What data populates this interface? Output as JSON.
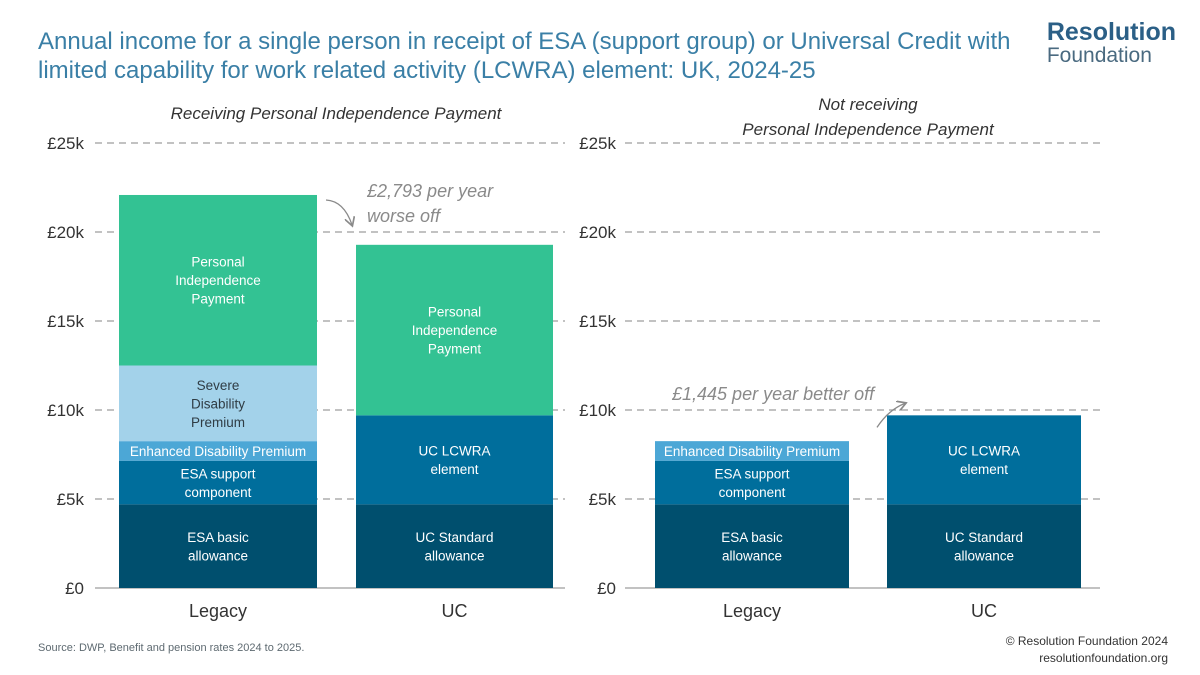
{
  "header": {
    "title": "Annual income for a single person in receipt of ESA (support group) or Universal Credit with limited capability for work related activity (LCWRA) element: UK, 2024-25",
    "logo_line1": "Resolution",
    "logo_line2": "Foundation"
  },
  "footer": {
    "source": "Source: DWP, Benefit and pension rates 2024 to 2025.",
    "copyright": "© Resolution Foundation 2024",
    "website": "resolutionfoundation.org"
  },
  "colors": {
    "esa_basic": "#004f6e",
    "esa_support": "#006e9c",
    "enhanced": "#4ca7d6",
    "severe": "#a3d2ea",
    "pip": "#33c293",
    "uc_standard": "#004f6e",
    "uc_lcwra": "#006e9c",
    "gridline": "#9e9e9e",
    "annotation": "#8a8a8a"
  },
  "chart_data": [
    {
      "type": "bar",
      "stacked": true,
      "title": "Receiving Personal Independence Payment",
      "categories": [
        "Legacy",
        "UC"
      ],
      "ylim": [
        0,
        25000
      ],
      "y_ticks": [
        {
          "value": 0,
          "label": "£0"
        },
        {
          "value": 5000,
          "label": "£5k"
        },
        {
          "value": 10000,
          "label": "£10k"
        },
        {
          "value": 15000,
          "label": "£15k"
        },
        {
          "value": 20000,
          "label": "£20k"
        },
        {
          "value": 25000,
          "label": "£25k"
        }
      ],
      "grid": true,
      "stacks": [
        {
          "category": "Legacy",
          "segments": [
            {
              "label": "ESA basic allowance",
              "value": 4700,
              "color": "esa_basic",
              "text": "light"
            },
            {
              "label": "ESA support component",
              "value": 2450,
              "color": "esa_support",
              "text": "light"
            },
            {
              "label": "Enhanced Disability Premium",
              "value": 1100,
              "color": "enhanced",
              "text": "light"
            },
            {
              "label": "Severe Disability Premium",
              "value": 4250,
              "color": "severe",
              "text": "dark"
            },
            {
              "label": "Personal Independence Payment",
              "value": 9580,
              "color": "pip",
              "text": "light"
            }
          ]
        },
        {
          "category": "UC",
          "segments": [
            {
              "label": "UC Standard allowance",
              "value": 4700,
              "color": "uc_standard",
              "text": "light"
            },
            {
              "label": "UC LCWRA element",
              "value": 5000,
              "color": "uc_lcwra",
              "text": "light"
            },
            {
              "label": "Personal Independence Payment",
              "value": 9580,
              "color": "pip",
              "text": "light"
            }
          ]
        }
      ],
      "annotation": {
        "text_lines": [
          "£2,793 per year",
          "worse off"
        ]
      }
    },
    {
      "type": "bar",
      "stacked": true,
      "title_lines": [
        "Not receiving",
        "Personal Independence Payment"
      ],
      "categories": [
        "Legacy",
        "UC"
      ],
      "ylim": [
        0,
        25000
      ],
      "y_ticks": [
        {
          "value": 0,
          "label": "£0"
        },
        {
          "value": 5000,
          "label": "£5k"
        },
        {
          "value": 10000,
          "label": "£10k"
        },
        {
          "value": 15000,
          "label": "£15k"
        },
        {
          "value": 20000,
          "label": "£20k"
        },
        {
          "value": 25000,
          "label": "£25k"
        }
      ],
      "grid": true,
      "stacks": [
        {
          "category": "Legacy",
          "segments": [
            {
              "label": "ESA basic allowance",
              "value": 4700,
              "color": "esa_basic",
              "text": "light"
            },
            {
              "label": "ESA support component",
              "value": 2450,
              "color": "esa_support",
              "text": "light"
            },
            {
              "label": "Enhanced Disability Premium",
              "value": 1100,
              "color": "enhanced",
              "text": "light"
            }
          ]
        },
        {
          "category": "UC",
          "segments": [
            {
              "label": "UC Standard allowance",
              "value": 4700,
              "color": "uc_standard",
              "text": "light"
            },
            {
              "label": "UC LCWRA element",
              "value": 5000,
              "color": "uc_lcwra",
              "text": "light"
            }
          ]
        }
      ],
      "annotation": {
        "text_lines": [
          "£1,445 per year better off"
        ]
      }
    }
  ]
}
